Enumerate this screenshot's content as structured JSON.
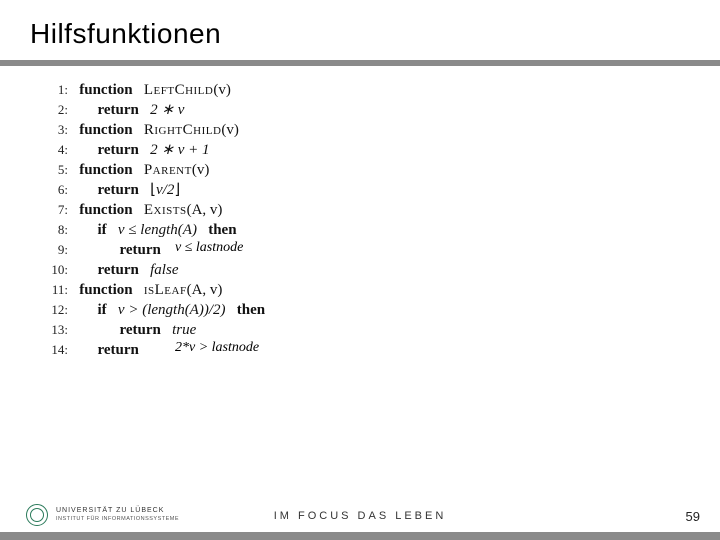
{
  "title": "Hilfsfunktionen",
  "lines": {
    "l1_num": "1:",
    "l1_kw": "function",
    "l1_fn": "LeftChild",
    "l1_arg": "(v)",
    "l2_num": "2:",
    "l2_kw": "return",
    "l2_expr": "2 ∗ v",
    "l3_num": "3:",
    "l3_kw": "function",
    "l3_fn": "RightChild",
    "l3_arg": "(v)",
    "l4_num": "4:",
    "l4_kw": "return",
    "l4_expr": "2 ∗ v + 1",
    "l5_num": "5:",
    "l5_kw": "function",
    "l5_fn": "Parent",
    "l5_arg": "(v)",
    "l6_num": "6:",
    "l6_kw": "return",
    "l6_expr_open": "⌊",
    "l6_expr_mid": "v/2",
    "l6_expr_close": "⌋",
    "l7_num": "7:",
    "l7_kw": "function",
    "l7_fn": "Exists",
    "l7_arg": "(A, v)",
    "l8_num": "8:",
    "l8_kw1": "if",
    "l8_cond": "v ≤ length(A)",
    "l8_kw2": "then",
    "l9_num": "9:",
    "l9_kw": "return",
    "l10_num": "10:",
    "l10_kw": "return",
    "l10_expr": "false",
    "l11_num": "11:",
    "l11_kw": "function",
    "l11_fn": "isLeaf",
    "l11_arg": "(A, v)",
    "l12_num": "12:",
    "l12_kw1": "if",
    "l12_cond": "v > (length(A))/2)",
    "l12_kw2": "then",
    "l13_num": "13:",
    "l13_kw": "return",
    "l13_expr": "true",
    "l14_num": "14:",
    "l14_kw": "return"
  },
  "annotations": {
    "a1": "v ≤ lastnode",
    "a2": "2*v > lastnode"
  },
  "footer": {
    "uni_line1": "UNIVERSITÄT ZU LÜBECK",
    "uni_line2": "INSTITUT FÜR INFORMATIONSSYSTEME",
    "motto": "IM FOCUS DAS LEBEN",
    "page": "59"
  },
  "style": {
    "background": "#ffffff",
    "rule_color": "#8a8a8a",
    "title_fontsize": 28,
    "code_fontsize": 15,
    "line_height": 20,
    "logo_color": "#2a7a5a"
  }
}
